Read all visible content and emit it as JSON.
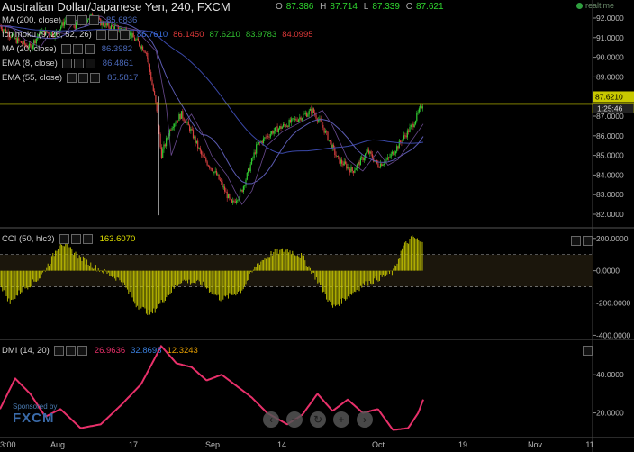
{
  "header": {
    "title": "Australian Dollar/Japanese Yen, 240, FXCM",
    "ohlc": [
      {
        "k": "O",
        "v": "87.386"
      },
      {
        "k": "H",
        "v": "87.714"
      },
      {
        "k": "L",
        "v": "87.339"
      },
      {
        "k": "C",
        "v": "87.621"
      }
    ],
    "realtime": "realtime"
  },
  "indicators": [
    {
      "label": "MA (200, close)",
      "values": [
        "85.6836"
      ]
    },
    {
      "label": "Ichimoku (9, 26, 52, 26)",
      "values": [
        "86.7610",
        "86.1450",
        "87.6210",
        "83.9783",
        "84.0995"
      ]
    },
    {
      "label": "MA (20, close)",
      "values": [
        "86.3982"
      ]
    },
    {
      "label": "EMA (8, close)",
      "values": [
        "86.4861"
      ]
    },
    {
      "label": "EMA (55, close)",
      "values": [
        "85.5817"
      ]
    }
  ],
  "cci": {
    "label": "CCI (50, hlc3)",
    "value": "163.6070",
    "axis": [
      "200.0000",
      "0.0000",
      "-200.0000",
      "-400.0000"
    ]
  },
  "dmi": {
    "label": "DMI (14, 20)",
    "values": [
      "26.9636",
      "32.8698",
      "12.3243"
    ],
    "axis": [
      "40.0000",
      "20.0000"
    ]
  },
  "price_axis": [
    "92.0000",
    "91.0000",
    "90.0000",
    "89.0000",
    "88.0000",
    "87.0000",
    "86.0000",
    "85.0000",
    "84.0000",
    "83.0000",
    "82.0000"
  ],
  "price_tags": {
    "last": "87.6210",
    "countdown": "1:25:46"
  },
  "time_axis": [
    "3:00",
    "Aug",
    "17",
    "Sep",
    "14",
    "Oct",
    "19",
    "Nov",
    "11"
  ],
  "sponsor": {
    "line1": "Sponsored by",
    "line2": "FXCM"
  },
  "colors": {
    "bg": "#000000",
    "up": "#30c830",
    "down": "#d84040",
    "hline": "#c8c800",
    "cci": "#c8c800",
    "dmi": "#e8306a"
  },
  "chart_data": [
    {
      "type": "candlestick",
      "title": "Australian Dollar/Japanese Yen, 240, FXCM",
      "ylim": [
        81.5,
        92.7
      ],
      "close_path": [
        {
          "t": 0,
          "c": 91.6
        },
        {
          "t": 3,
          "c": 90.9
        },
        {
          "t": 6,
          "c": 90.5
        },
        {
          "t": 8,
          "c": 91.3
        },
        {
          "t": 11,
          "c": 91.2
        },
        {
          "t": 13,
          "c": 91.9
        },
        {
          "t": 15,
          "c": 91.6
        },
        {
          "t": 18,
          "c": 92.1
        },
        {
          "t": 21,
          "c": 91.6
        },
        {
          "t": 25,
          "c": 91.4
        },
        {
          "t": 29,
          "c": 90.3
        },
        {
          "t": 31,
          "c": 87.5
        },
        {
          "t": 32,
          "c": 85.0
        },
        {
          "t": 34,
          "c": 86.5
        },
        {
          "t": 36,
          "c": 87.1
        },
        {
          "t": 38,
          "c": 86.2
        },
        {
          "t": 40,
          "c": 85.0
        },
        {
          "t": 43,
          "c": 84.0
        },
        {
          "t": 46,
          "c": 82.5
        },
        {
          "t": 48,
          "c": 83.2
        },
        {
          "t": 51,
          "c": 85.5
        },
        {
          "t": 54,
          "c": 86.2
        },
        {
          "t": 57,
          "c": 86.6
        },
        {
          "t": 60,
          "c": 87.0
        },
        {
          "t": 62,
          "c": 87.3
        },
        {
          "t": 64,
          "c": 86.5
        },
        {
          "t": 67,
          "c": 84.8
        },
        {
          "t": 70,
          "c": 84.2
        },
        {
          "t": 73,
          "c": 85.2
        },
        {
          "t": 75,
          "c": 84.5
        },
        {
          "t": 77,
          "c": 84.8
        },
        {
          "t": 79,
          "c": 85.5
        },
        {
          "t": 82,
          "c": 86.6
        },
        {
          "t": 84,
          "c": 87.7
        }
      ],
      "hline": 87.62
    },
    {
      "type": "bar",
      "title": "CCI (50, hlc3)",
      "ylim": [
        -420,
        260
      ],
      "zero_bands": [
        100,
        -100
      ],
      "path": [
        {
          "t": 0,
          "v": -80
        },
        {
          "t": 2,
          "v": -200
        },
        {
          "t": 4,
          "v": -130
        },
        {
          "t": 8,
          "v": -40
        },
        {
          "t": 10,
          "v": 60
        },
        {
          "t": 12,
          "v": 180
        },
        {
          "t": 16,
          "v": 80
        },
        {
          "t": 19,
          "v": 20
        },
        {
          "t": 24,
          "v": -60
        },
        {
          "t": 27,
          "v": -210
        },
        {
          "t": 30,
          "v": -270
        },
        {
          "t": 33,
          "v": -160
        },
        {
          "t": 36,
          "v": -60
        },
        {
          "t": 40,
          "v": -80
        },
        {
          "t": 44,
          "v": -180
        },
        {
          "t": 48,
          "v": -120
        },
        {
          "t": 51,
          "v": 40
        },
        {
          "t": 54,
          "v": 110
        },
        {
          "t": 57,
          "v": 130
        },
        {
          "t": 60,
          "v": 90
        },
        {
          "t": 63,
          "v": -60
        },
        {
          "t": 66,
          "v": -230
        },
        {
          "t": 69,
          "v": -160
        },
        {
          "t": 72,
          "v": -90
        },
        {
          "t": 75,
          "v": -50
        },
        {
          "t": 78,
          "v": -10
        },
        {
          "t": 80,
          "v": 150
        },
        {
          "t": 82,
          "v": 210
        },
        {
          "t": 84,
          "v": 164
        }
      ]
    },
    {
      "type": "line",
      "title": "DMI (14, 20)",
      "ylim": [
        8,
        58
      ],
      "path": [
        {
          "t": 0,
          "v": 22
        },
        {
          "t": 3,
          "v": 38
        },
        {
          "t": 6,
          "v": 30
        },
        {
          "t": 9,
          "v": 18
        },
        {
          "t": 12,
          "v": 22
        },
        {
          "t": 16,
          "v": 12
        },
        {
          "t": 20,
          "v": 14
        },
        {
          "t": 24,
          "v": 24
        },
        {
          "t": 28,
          "v": 35
        },
        {
          "t": 32,
          "v": 55
        },
        {
          "t": 35,
          "v": 46
        },
        {
          "t": 38,
          "v": 44
        },
        {
          "t": 41,
          "v": 37
        },
        {
          "t": 44,
          "v": 40
        },
        {
          "t": 47,
          "v": 34
        },
        {
          "t": 50,
          "v": 28
        },
        {
          "t": 53,
          "v": 20
        },
        {
          "t": 57,
          "v": 14
        },
        {
          "t": 60,
          "v": 19
        },
        {
          "t": 63,
          "v": 30
        },
        {
          "t": 66,
          "v": 21
        },
        {
          "t": 69,
          "v": 27
        },
        {
          "t": 72,
          "v": 20
        },
        {
          "t": 75,
          "v": 22
        },
        {
          "t": 78,
          "v": 11
        },
        {
          "t": 81,
          "v": 12
        },
        {
          "t": 83,
          "v": 20
        },
        {
          "t": 84,
          "v": 27
        }
      ]
    }
  ]
}
